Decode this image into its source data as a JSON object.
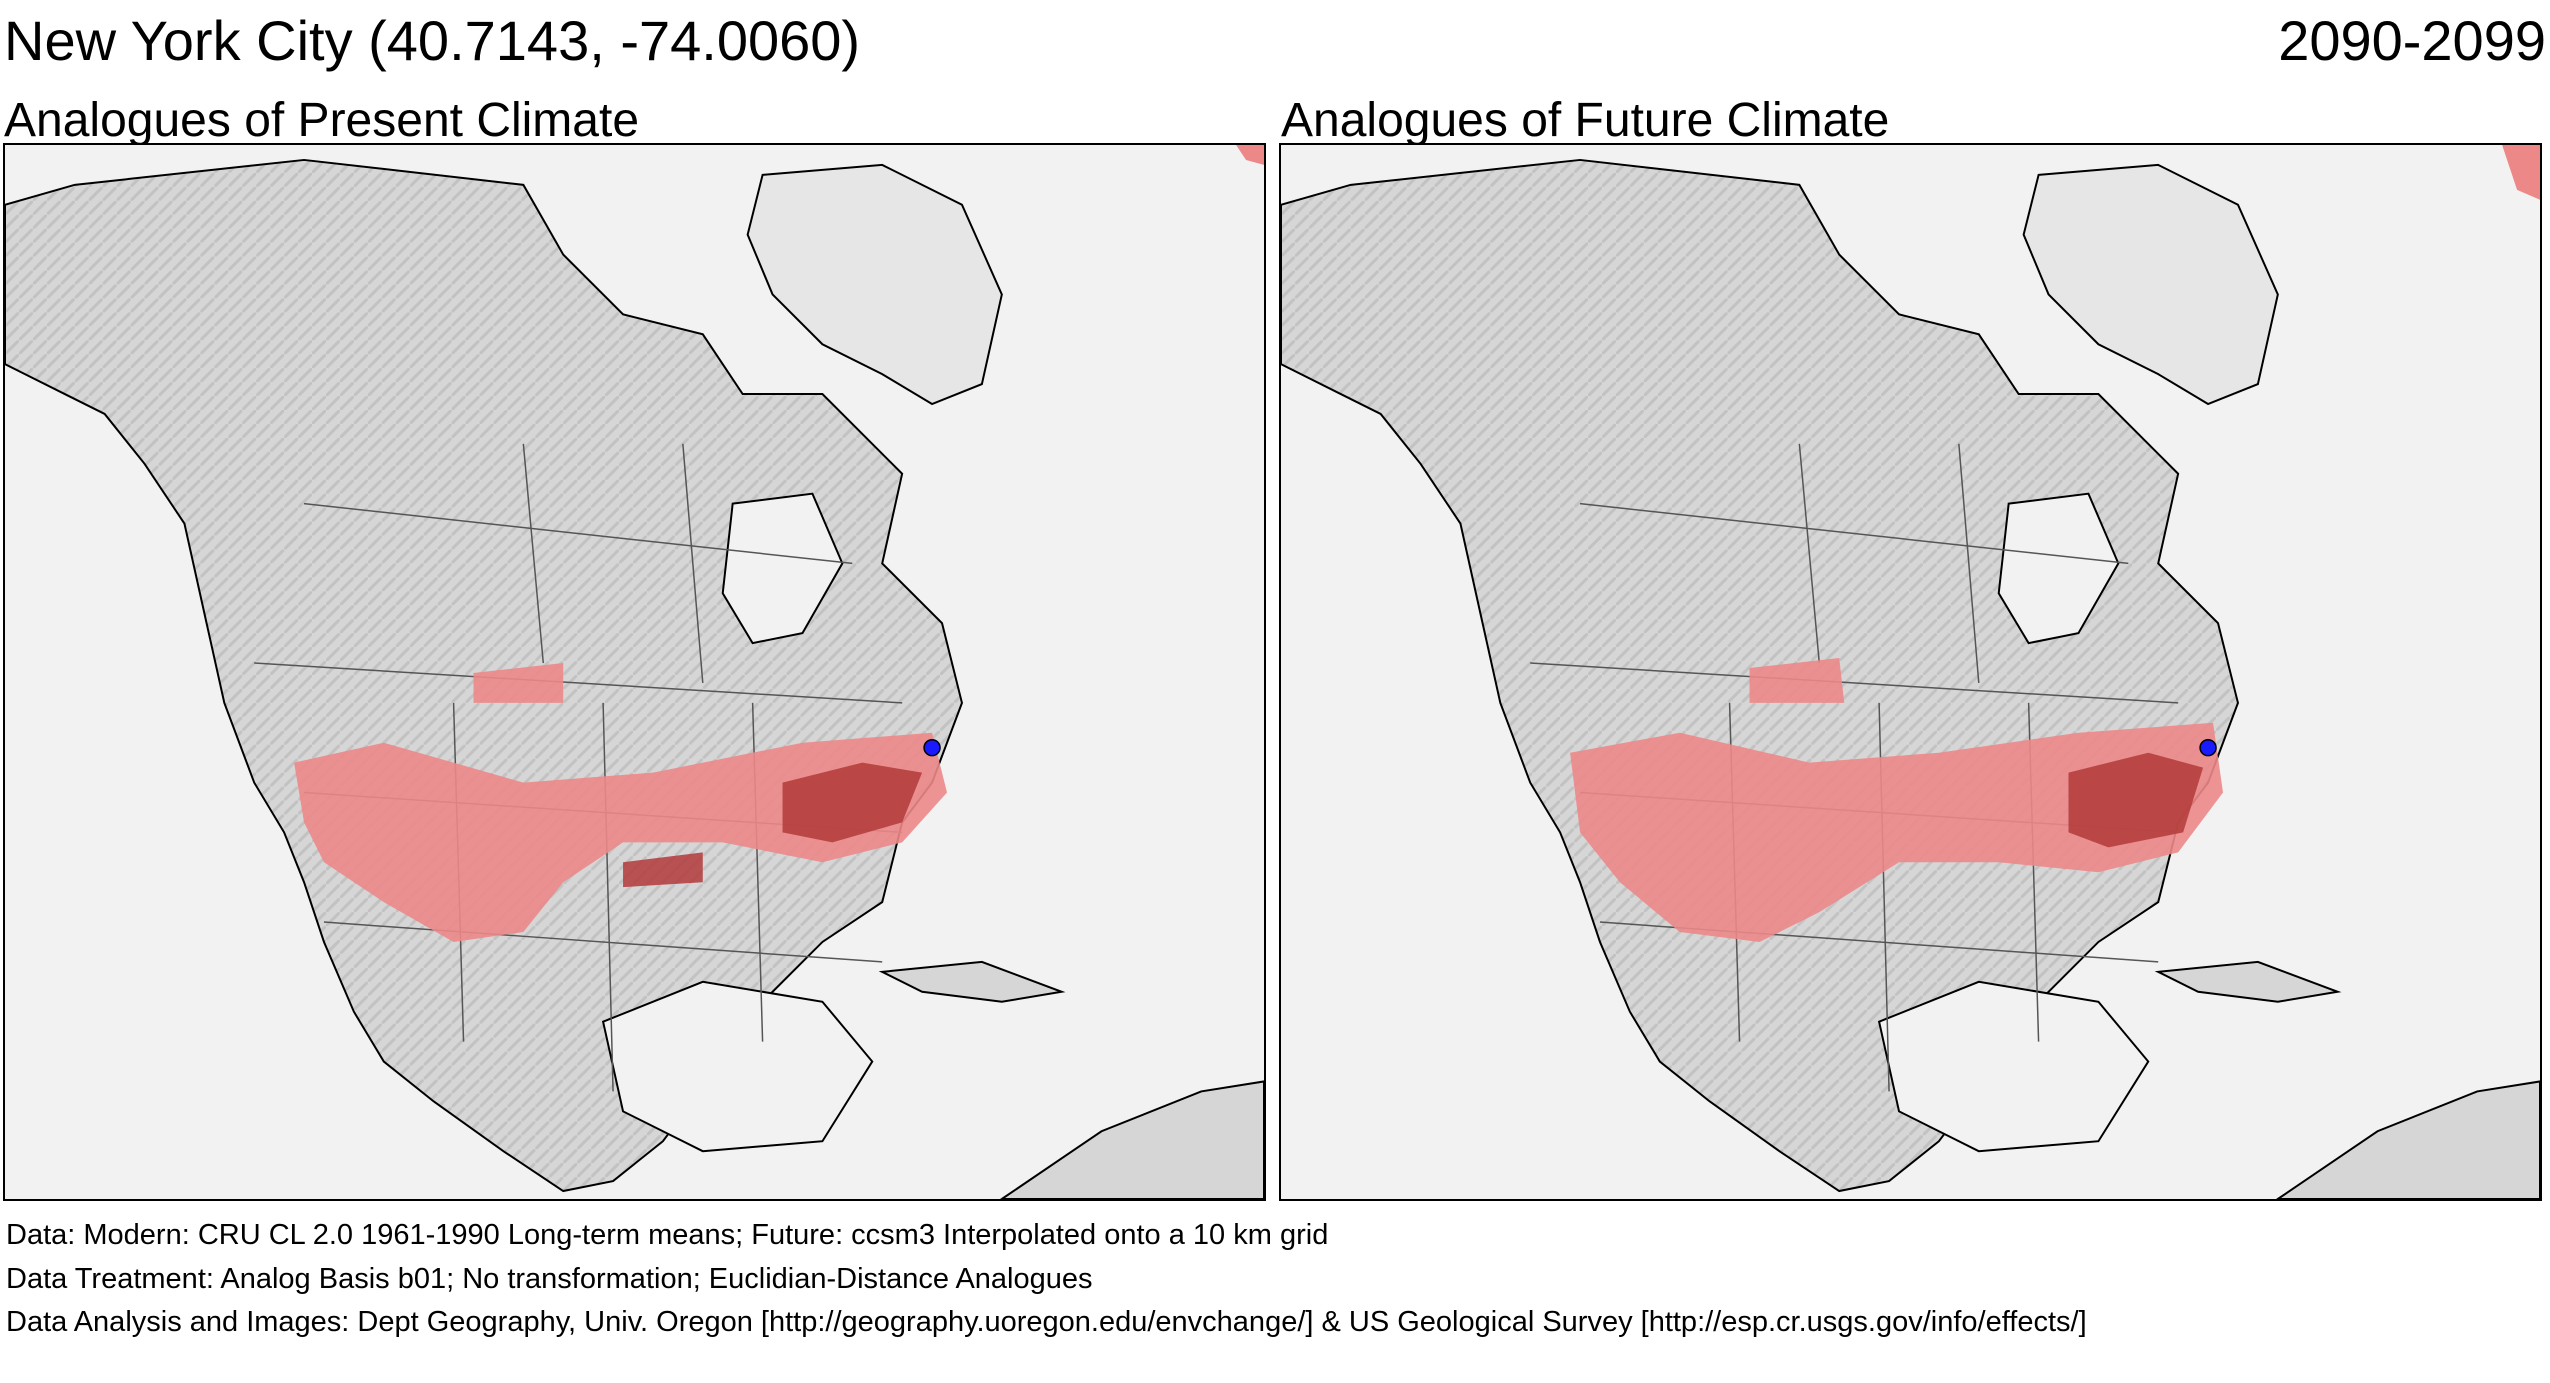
{
  "header": {
    "title": "New York City  (40.7143, -74.0060)",
    "period": "2090-2099"
  },
  "panels": {
    "present": {
      "title": "Analogues of Present Climate"
    },
    "future": {
      "title": "Analogues of Future Climate"
    }
  },
  "footer": {
    "data_line": "Data:  Modern: CRU CL 2.0 1961-1990 Long-term means; Future: ccsm3 Interpolated onto a 10 km grid",
    "treatment_line": "Data Treatment:  Analog Basis b01; No transformation; Euclidian-Distance Analogues",
    "analysis_line": "Data Analysis and Images:  Dept Geography, Univ. Oregon [http://geography.uoregon.edu/envchange/] & US Geological Survey [http://esp.cr.usgs.gov/info/effects/]"
  },
  "map": {
    "location_marker": {
      "lat": 40.7143,
      "lon": -74.006
    },
    "colors": {
      "ocean": "#f2f2f2",
      "land": "#d9d9d9",
      "land_shade": "#b8b8b8",
      "analogue": "#ec8888",
      "analogue_strong": "#b33a3a",
      "marker": "#1a1aff"
    }
  }
}
